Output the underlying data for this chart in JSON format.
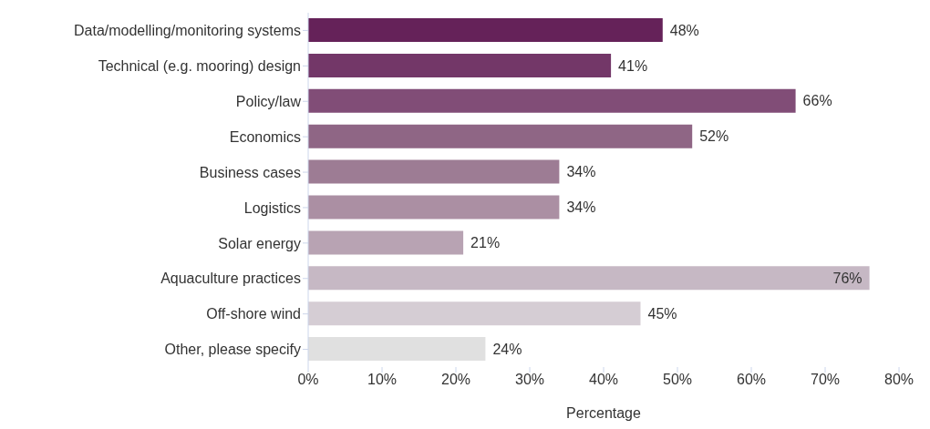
{
  "chart_data": {
    "type": "bar",
    "orientation": "horizontal",
    "xlabel": "Percentage",
    "categories": [
      "Data/modelling/monitoring systems",
      "Technical (e.g. mooring) design",
      "Policy/law",
      "Economics",
      "Business cases",
      "Logistics",
      "Solar energy",
      "Aquaculture practices",
      "Off-shore wind",
      "Other, please specify"
    ],
    "values": [
      48,
      41,
      66,
      52,
      34,
      34,
      21,
      76,
      45,
      24
    ],
    "colors": [
      "#652259",
      "#733768",
      "#814d77",
      "#8f6685",
      "#9d7c94",
      "#ab8fa3",
      "#b8a3b3",
      "#c6b8c4",
      "#d5cdd4",
      "#e0e0e0"
    ],
    "value_labels": [
      "48%",
      "41%",
      "66%",
      "52%",
      "34%",
      "34%",
      "21%",
      "76%",
      "45%",
      "24%"
    ],
    "xlim": [
      0,
      80
    ],
    "xticks": [
      {
        "value": 0,
        "label": "0%"
      },
      {
        "value": 10,
        "label": "10%"
      },
      {
        "value": 20,
        "label": "20%"
      },
      {
        "value": 30,
        "label": "30%"
      },
      {
        "value": 40,
        "label": "40%"
      },
      {
        "value": 50,
        "label": "50%"
      },
      {
        "value": 60,
        "label": "60%"
      },
      {
        "value": 70,
        "label": "70%"
      },
      {
        "value": 80,
        "label": "80%"
      }
    ],
    "grid": false,
    "legend": false
  }
}
